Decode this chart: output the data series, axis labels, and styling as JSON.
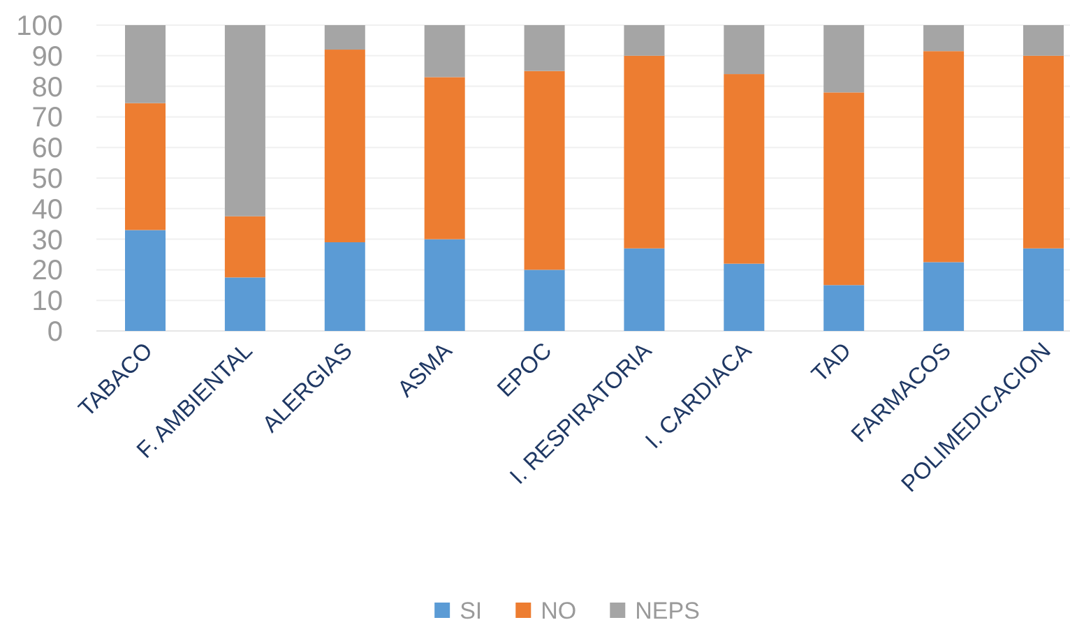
{
  "chart_data": {
    "type": "bar",
    "stacked": true,
    "categories": [
      "TABACO",
      "F. AMBIENTAL",
      "ALERGIAS",
      "ASMA",
      "EPOC",
      "I. RESPIRATORIA",
      "I. CARDIACA",
      "TAD",
      "FARMACOS",
      "POLIMEDICACION"
    ],
    "series": [
      {
        "name": "SI",
        "color": "#5b9bd5",
        "values": [
          33,
          17.5,
          29,
          30,
          20,
          27,
          22,
          15,
          22.5,
          27
        ]
      },
      {
        "name": "NO",
        "color": "#ed7d31",
        "values": [
          41.5,
          20,
          63,
          53,
          65,
          63,
          62,
          63,
          69,
          63
        ]
      },
      {
        "name": "NEPS",
        "color": "#a5a5a5",
        "values": [
          25.5,
          62.5,
          8,
          17,
          15,
          10,
          16,
          22,
          8.5,
          10
        ]
      }
    ],
    "ylim": [
      0,
      100
    ],
    "yticks": [
      0,
      10,
      20,
      30,
      40,
      50,
      60,
      70,
      80,
      90,
      100
    ],
    "grid": "y",
    "legend": "bottom"
  }
}
